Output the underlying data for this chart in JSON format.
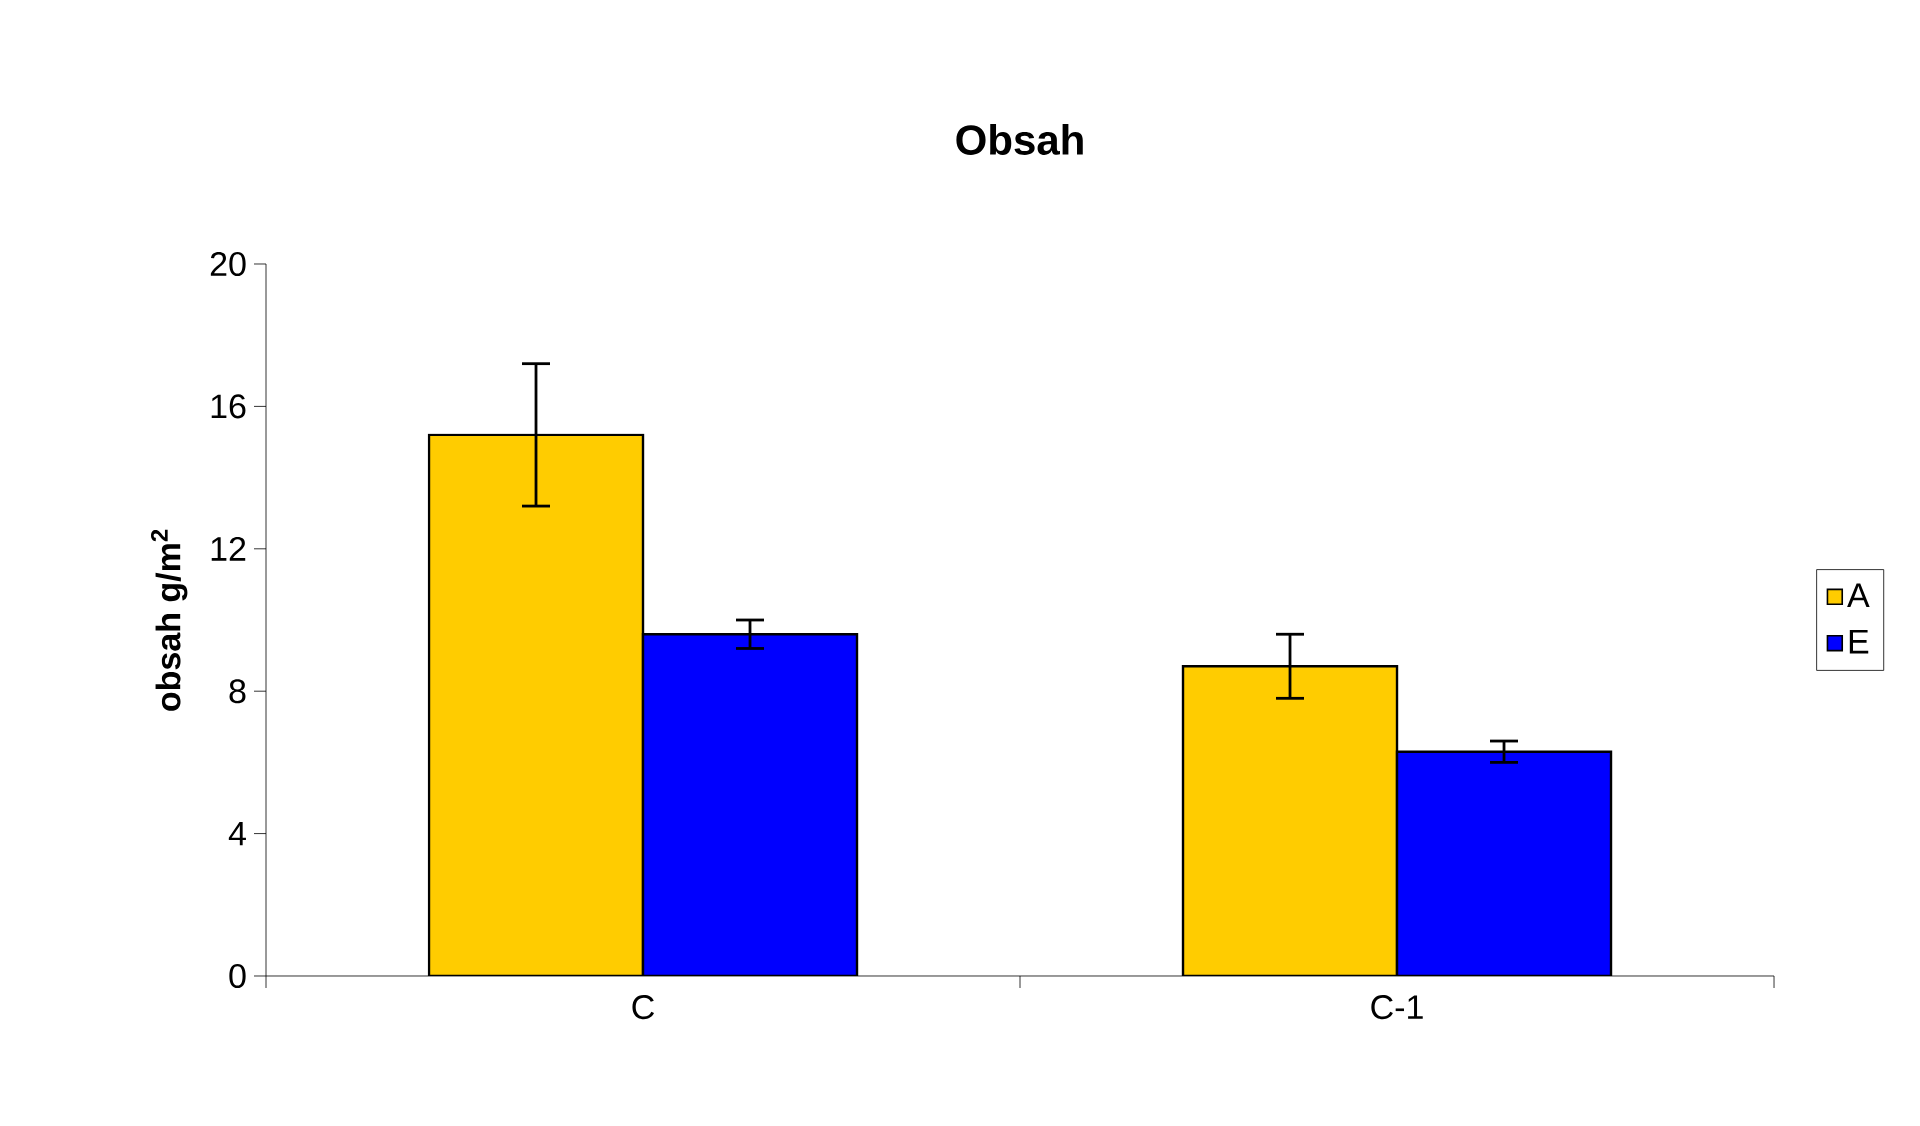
{
  "chart_data": {
    "type": "bar",
    "title": "Obsah",
    "ylabel": "obsah g/m$^{2}$",
    "categories": [
      "C",
      "C-1"
    ],
    "series": [
      {
        "name": "A",
        "color": "#ffcc00",
        "values": [
          15.2,
          8.7
        ],
        "errors": [
          2.0,
          0.9
        ]
      },
      {
        "name": "E",
        "color": "#0000ff",
        "values": [
          9.6,
          6.3
        ],
        "errors": [
          0.4,
          0.3
        ]
      }
    ],
    "ylim": [
      0,
      20
    ],
    "yticks": [
      0,
      4,
      8,
      12,
      16,
      20
    ],
    "grid": false,
    "legend": "right"
  }
}
